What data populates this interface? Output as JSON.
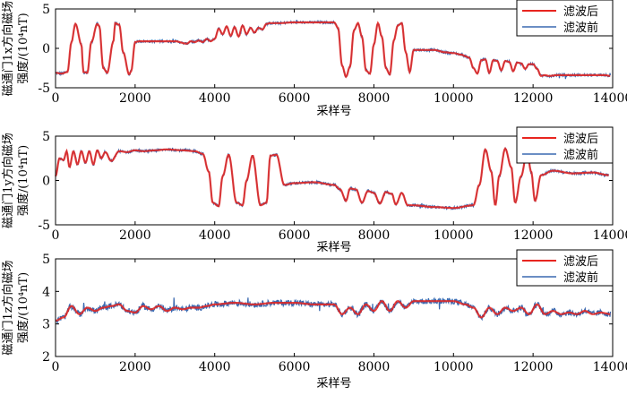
{
  "chart_data": [
    {
      "type": "line",
      "ylabel_line1": "磁通门1x方向磁场",
      "ylabel_line2": "强度/(10⁴nT)",
      "xlabel": "采样号",
      "xlim": [
        0,
        14000
      ],
      "ylim": [
        -5,
        5
      ],
      "xticks": [
        0,
        2000,
        4000,
        6000,
        8000,
        10000,
        12000,
        14000
      ],
      "yticks": [
        -5,
        0,
        5
      ],
      "legend_position": "top-right",
      "colors": {
        "filtered": "#e8251f",
        "raw": "#3a69b0"
      },
      "series": [
        {
          "name": "滤波后",
          "role": "filtered",
          "x": [
            0,
            150,
            300,
            400,
            500,
            650,
            700,
            800,
            900,
            1050,
            1100,
            1200,
            1300,
            1450,
            1500,
            1600,
            1700,
            1850,
            1900,
            2000,
            2100,
            2150,
            2500,
            3000,
            3300,
            3400,
            3500,
            3600,
            3700,
            3800,
            3900,
            4000,
            4100,
            4200,
            4300,
            4400,
            4500,
            4600,
            4700,
            4800,
            4900,
            5000,
            5100,
            5200,
            5300,
            5400,
            5600,
            6000,
            6500,
            7000,
            7100,
            7200,
            7300,
            7400,
            7500,
            7600,
            7700,
            7800,
            7900,
            8000,
            8100,
            8200,
            8300,
            8400,
            8500,
            8600,
            8700,
            8800,
            8900,
            9000,
            9200,
            9500,
            9800,
            10000,
            10200,
            10300,
            10400,
            10500,
            10600,
            10700,
            10800,
            10900,
            11000,
            11100,
            11200,
            11300,
            11400,
            11500,
            11600,
            11700,
            11800,
            11900,
            12000,
            12100,
            12200,
            12300,
            12400,
            12600,
            13000,
            13500,
            13800,
            13950
          ],
          "y": [
            -3.1,
            -3.2,
            -3,
            0.8,
            3.1,
            0.5,
            -3,
            -3.1,
            0.8,
            3.1,
            2.8,
            -2.5,
            -3.1,
            0.8,
            3.2,
            3.0,
            -0.5,
            -3.3,
            -2.9,
            0.8,
            0.9,
            0.9,
            0.9,
            0.9,
            0.6,
            0.9,
            0.8,
            1.0,
            0.8,
            1.2,
            0.9,
            1.2,
            2.5,
            1.8,
            2.8,
            1.6,
            2.7,
            1.5,
            2.9,
            1.8,
            2.6,
            2.0,
            2.6,
            2.4,
            3.1,
            3.2,
            3.2,
            3.3,
            3.3,
            3.3,
            2.6,
            -2.2,
            -3.6,
            -2.3,
            2.3,
            3.2,
            1.5,
            -2.8,
            -3.2,
            0.5,
            3.2,
            1.5,
            -2.5,
            -3.3,
            1.0,
            2.9,
            3.2,
            -0.5,
            -3,
            -0.2,
            -0.2,
            -0.2,
            -0.5,
            -0.6,
            -0.8,
            -1.0,
            -1.2,
            -2.5,
            -3.2,
            -1.5,
            -1.4,
            -3.1,
            -1.5,
            -1.6,
            -2.8,
            -1.6,
            -1.7,
            -2.9,
            -1.8,
            -1.9,
            -2.6,
            -2.0,
            -2.0,
            -2.6,
            -3.5,
            -3.4,
            -3.5,
            -3.4,
            -3.4,
            -3.4,
            -3.4,
            -3.5
          ]
        },
        {
          "name": "滤波前",
          "role": "raw",
          "jitter": 0.15
        }
      ]
    },
    {
      "type": "line",
      "ylabel_line1": "磁通门1y方向磁场",
      "ylabel_line2": "强度/(10⁴nT)",
      "xlabel": "采样号",
      "xlim": [
        0,
        14000
      ],
      "ylim": [
        -5,
        5
      ],
      "xticks": [
        0,
        2000,
        4000,
        6000,
        8000,
        10000,
        12000,
        14000
      ],
      "yticks": [
        -5,
        0,
        5
      ],
      "legend_position": "top-right",
      "colors": {
        "filtered": "#e8251f",
        "raw": "#3a69b0"
      },
      "series": [
        {
          "name": "滤波后",
          "role": "filtered",
          "x": [
            0,
            100,
            200,
            280,
            350,
            450,
            550,
            650,
            750,
            850,
            950,
            1050,
            1150,
            1250,
            1400,
            1600,
            1800,
            2000,
            2200,
            2500,
            2800,
            3200,
            3500,
            3700,
            3850,
            3950,
            4100,
            4200,
            4350,
            4550,
            4700,
            4800,
            4950,
            5150,
            5300,
            5400,
            5550,
            5750,
            6000,
            6500,
            7000,
            7150,
            7300,
            7400,
            7550,
            7700,
            7850,
            8000,
            8150,
            8300,
            8450,
            8550,
            8700,
            8850,
            9000,
            9500,
            10000,
            10500,
            10650,
            10800,
            10950,
            11050,
            11150,
            11300,
            11450,
            11550,
            11700,
            11850,
            11950,
            12050,
            12200,
            12500,
            13000,
            13500,
            13900
          ],
          "y": [
            0.5,
            2.5,
            2.3,
            3.3,
            1.5,
            3.3,
            1.8,
            3.3,
            2.0,
            3.3,
            1.8,
            3.4,
            2.5,
            3.2,
            2.2,
            3.3,
            3.2,
            3.4,
            3.3,
            3.4,
            3.5,
            3.4,
            3.3,
            3.0,
            1.0,
            -2.5,
            -2.9,
            0.5,
            2.9,
            -2.5,
            -2.8,
            0.0,
            2.8,
            -2.8,
            -2.5,
            2.8,
            2.9,
            -0.5,
            -0.3,
            -0.2,
            -0.5,
            -1.0,
            -2.3,
            -0.9,
            -1.0,
            -2.5,
            -1.2,
            -1.4,
            -2.6,
            -1.3,
            -1.5,
            -2.7,
            -1.4,
            -2.8,
            -2.8,
            -3.0,
            -3.1,
            -2.8,
            -0.5,
            3.5,
            1.0,
            -2.8,
            0.5,
            3.6,
            1.5,
            -2.5,
            0.5,
            3.3,
            1.0,
            -2.3,
            0.6,
            1.1,
            0.8,
            0.9,
            0.6
          ]
        },
        {
          "name": "滤波前",
          "role": "raw",
          "jitter": 0.15
        }
      ]
    },
    {
      "type": "line",
      "ylabel_line1": "磁通门1z方向磁场",
      "ylabel_line2": "强度/(10⁴nT)",
      "xlabel": "采样号",
      "xlim": [
        0,
        14000
      ],
      "ylim": [
        2,
        5
      ],
      "xticks": [
        0,
        2000,
        4000,
        6000,
        8000,
        10000,
        12000,
        14000
      ],
      "yticks": [
        2,
        3,
        4,
        5
      ],
      "legend_position": "top-right",
      "colors": {
        "filtered": "#e8251f",
        "raw": "#3a69b0"
      },
      "series": [
        {
          "name": "滤波后",
          "role": "filtered",
          "x": [
            0,
            200,
            400,
            600,
            800,
            1000,
            1200,
            1400,
            1600,
            1800,
            2000,
            2200,
            2400,
            2600,
            2800,
            3000,
            3200,
            3400,
            3600,
            3800,
            4000,
            4500,
            5000,
            5500,
            6000,
            6500,
            7000,
            7200,
            7400,
            7600,
            7800,
            8000,
            8200,
            8400,
            8600,
            8800,
            9000,
            9500,
            10000,
            10300,
            10500,
            10700,
            10900,
            11100,
            11300,
            11500,
            11700,
            11900,
            12100,
            12300,
            12500,
            12700,
            12900,
            13100,
            13300,
            13500,
            13700,
            13950
          ],
          "y": [
            3.1,
            3.2,
            3.55,
            3.3,
            3.5,
            3.4,
            3.5,
            3.55,
            3.6,
            3.4,
            3.35,
            3.55,
            3.45,
            3.55,
            3.4,
            3.5,
            3.45,
            3.5,
            3.5,
            3.55,
            3.6,
            3.65,
            3.6,
            3.65,
            3.65,
            3.6,
            3.6,
            3.3,
            3.5,
            3.3,
            3.6,
            3.4,
            3.7,
            3.4,
            3.7,
            3.5,
            3.7,
            3.7,
            3.7,
            3.6,
            3.5,
            3.2,
            3.5,
            3.3,
            3.5,
            3.4,
            3.5,
            3.3,
            3.6,
            3.3,
            3.4,
            3.3,
            3.35,
            3.3,
            3.4,
            3.3,
            3.35,
            3.3
          ]
        },
        {
          "name": "滤波前",
          "role": "raw",
          "jitter": 0.09
        }
      ]
    }
  ]
}
